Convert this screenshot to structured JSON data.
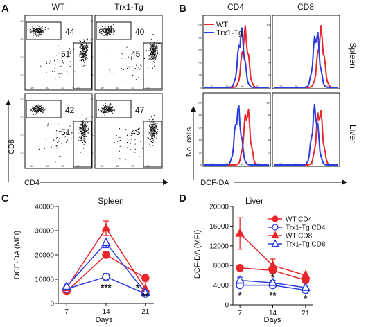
{
  "panels": {
    "a": {
      "label": "A",
      "col_headers": [
        "WT",
        "Trx1-Tg"
      ],
      "xlabel": "CD4",
      "ylabel": "CD8",
      "plots": [
        {
          "gate_cd8": "44",
          "gate_cd4": "51"
        },
        {
          "gate_cd8": "40",
          "gate_cd4": "45"
        },
        {
          "gate_cd8": "42",
          "gate_cd4": "51"
        },
        {
          "gate_cd8": "47",
          "gate_cd4": "45"
        }
      ],
      "tick_label": "10"
    },
    "b": {
      "label": "B",
      "col_headers": [
        "CD4",
        "CD8"
      ],
      "row_labels": [
        "Spleen",
        "Liver"
      ],
      "legend": [
        "WT",
        "Trx1-Tg"
      ],
      "ylabel": "No. cells",
      "xlabel": "DCF-DA",
      "hist_ticks": [
        "0",
        "20",
        "40",
        "60",
        "80",
        "100"
      ]
    },
    "c": {
      "label": "C"
    },
    "d": {
      "label": "D"
    }
  },
  "colors": {
    "wt": "#e8262b",
    "tg": "#2b3de0"
  },
  "chart_data": [
    {
      "type": "line",
      "title": "Spleen",
      "xlabel": "Days",
      "ylabel": "DCF-DA (MFI)",
      "x": [
        7,
        14,
        21
      ],
      "ylim": [
        0,
        40000
      ],
      "yticks": [
        0,
        10000,
        20000,
        30000,
        40000
      ],
      "series": [
        {
          "name": "WT CD4",
          "marker": "circle",
          "filled": true,
          "color": "#e8262b",
          "values": [
            5000,
            20000,
            10500
          ],
          "errors": [
            700,
            1200,
            1000
          ]
        },
        {
          "name": "Trx1-Tg CD4",
          "marker": "circle",
          "filled": false,
          "color": "#2b3de0",
          "values": [
            6000,
            11000,
            4000
          ],
          "errors": [
            700,
            1300,
            500
          ]
        },
        {
          "name": "WT CD8",
          "marker": "triangle",
          "filled": true,
          "color": "#e8262b",
          "values": [
            6500,
            31000,
            6000
          ],
          "errors": [
            800,
            3000,
            2500
          ]
        },
        {
          "name": "Trx1-Tg CD8",
          "marker": "triangle",
          "filled": false,
          "color": "#2b3de0",
          "values": [
            7000,
            25000,
            4500
          ],
          "errors": [
            900,
            2000,
            600
          ]
        }
      ],
      "annotations": [
        {
          "x": 14,
          "y": 5300,
          "text": "***"
        },
        {
          "x": 19.6,
          "y": 5300,
          "text": "*"
        },
        {
          "x": 21,
          "y": 1700,
          "text": "**"
        }
      ]
    },
    {
      "type": "line",
      "title": "Liver",
      "xlabel": "Days",
      "ylabel": "DCF-DA (MFI)",
      "x": [
        7,
        14,
        21
      ],
      "ylim": [
        0,
        20000
      ],
      "yticks": [
        0,
        4000,
        8000,
        12000,
        16000,
        20000
      ],
      "series": [
        {
          "name": "WT CD4",
          "marker": "circle",
          "filled": true,
          "color": "#e8262b",
          "values": [
            7500,
            7000,
            5000
          ],
          "errors": [
            600,
            600,
            500
          ]
        },
        {
          "name": "Trx1-Tg CD4",
          "marker": "circle",
          "filled": false,
          "color": "#2b3de0",
          "values": [
            4000,
            4000,
            3000
          ],
          "errors": [
            500,
            500,
            400
          ]
        },
        {
          "name": "WT CD8",
          "marker": "triangle",
          "filled": true,
          "color": "#e8262b",
          "values": [
            14500,
            8000,
            6000
          ],
          "errors": [
            3200,
            1300,
            700
          ]
        },
        {
          "name": "Trx1-Tg CD8",
          "marker": "triangle",
          "filled": false,
          "color": "#2b3de0",
          "values": [
            5000,
            4500,
            3500
          ],
          "errors": [
            600,
            500,
            500
          ]
        }
      ],
      "annotations": [
        {
          "x": 7,
          "y": 1300,
          "text": "*"
        },
        {
          "x": 14,
          "y": 4900,
          "text": "*"
        },
        {
          "x": 14,
          "y": 1300,
          "text": "**"
        },
        {
          "x": 21,
          "y": 700,
          "text": "*"
        }
      ]
    }
  ]
}
